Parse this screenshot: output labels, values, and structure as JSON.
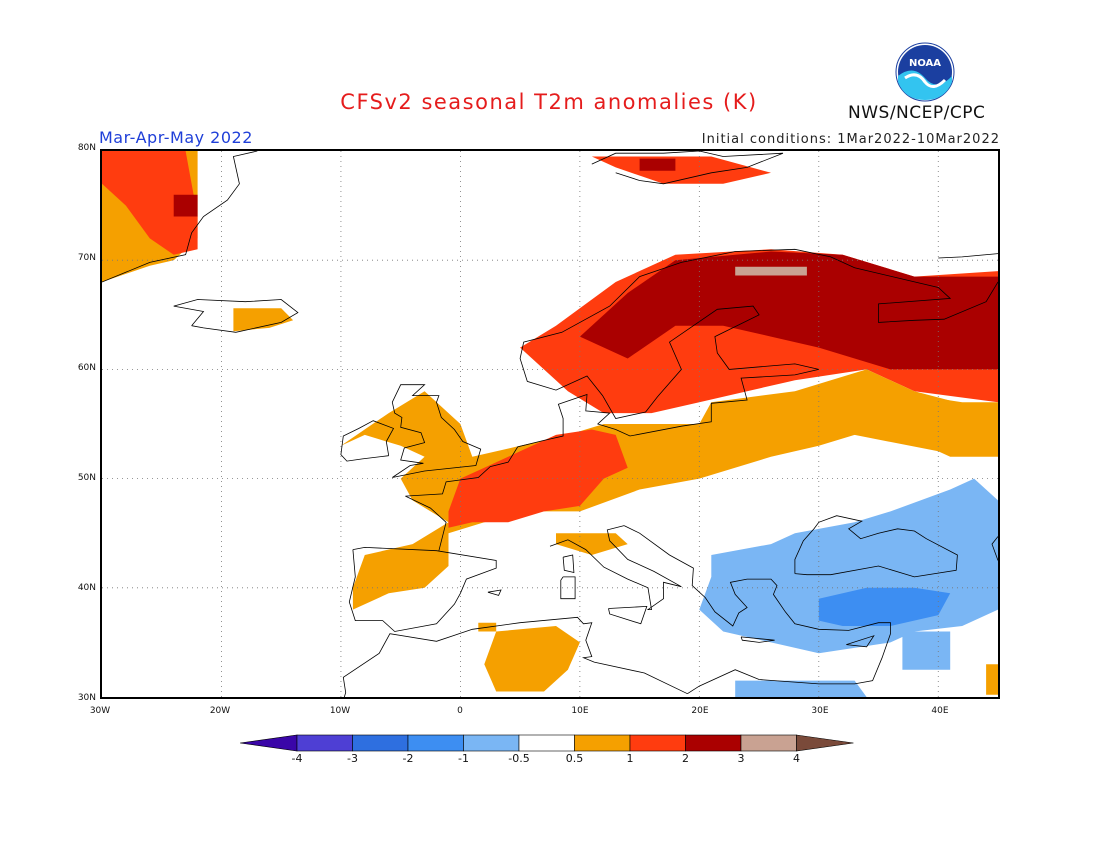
{
  "header": {
    "title": "CFSv2 seasonal T2m anomalies (K)",
    "period": "Mar-Apr-May 2022",
    "initial_conditions": "Initial conditions: 1Mar2022-10Mar2022",
    "agency": "NWS/NCEP/CPC",
    "logo_text": "NOAA",
    "logo_icon": "noaa-logo-icon"
  },
  "map": {
    "projection": "lat-lon",
    "lon_range": [
      -30,
      45
    ],
    "lat_range": [
      30,
      80
    ],
    "lat_ticks": [
      "30N",
      "40N",
      "50N",
      "60N",
      "70N",
      "80N"
    ],
    "lon_ticks": [
      "30W",
      "20W",
      "10W",
      "0",
      "10E",
      "20E",
      "30E",
      "40E"
    ],
    "grid": "dotted"
  },
  "colorbar": {
    "labels": [
      "-4",
      "-3",
      "-2",
      "-1",
      "-0.5",
      "0.5",
      "1",
      "2",
      "3",
      "4"
    ],
    "colors": [
      "#3a06a8",
      "#4e3fd4",
      "#2e6fe0",
      "#3d8ef2",
      "#7ab6f4",
      "#ffffff",
      "#f5a000",
      "#ff3c0f",
      "#aa0000",
      "#c9a292",
      "#7a4a3a"
    ]
  },
  "anomaly_colors": {
    "neg_1": "#3d8ef2",
    "neg_05": "#7ab6f4",
    "pos_05": "#f5a000",
    "pos_1": "#ff3c0f",
    "pos_2": "#aa0000",
    "pos_3": "#c9a292"
  }
}
